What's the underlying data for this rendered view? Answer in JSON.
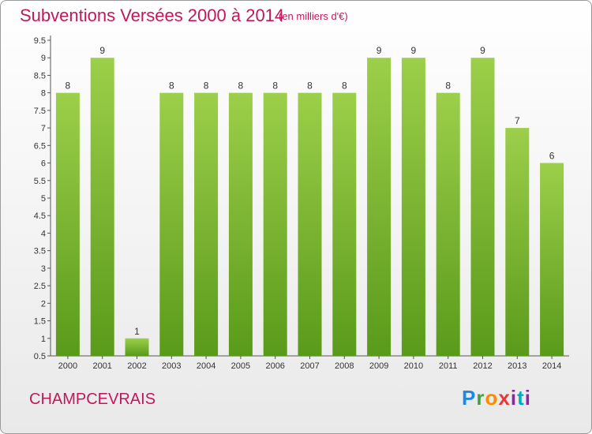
{
  "header": {
    "title": "Subventions Versées 2000 à 2014",
    "unit": "(en milliers d'€)"
  },
  "footer": {
    "commune": "CHAMPCEVRAIS",
    "logo_text": "Proxiti"
  },
  "colors": {
    "bar_top": "#9ccf4a",
    "bar_bottom": "#5a9a1a",
    "title": "#c2185b",
    "axis": "#555555"
  },
  "chart_data": {
    "type": "bar",
    "title": "Subventions Versées 2000 à 2014",
    "subtitle": "(en milliers d'€)",
    "categories": [
      "2000",
      "2001",
      "2002",
      "2003",
      "2004",
      "2005",
      "2006",
      "2007",
      "2008",
      "2009",
      "2010",
      "2011",
      "2012",
      "2013",
      "2014"
    ],
    "values": [
      8,
      9,
      1,
      8,
      8,
      8,
      8,
      8,
      8,
      9,
      9,
      8,
      9,
      7,
      6
    ],
    "ylim": [
      0.5,
      9.5
    ],
    "yticks": [
      0.5,
      1,
      1.5,
      2,
      2.5,
      3,
      3.5,
      4,
      4.5,
      5,
      5.5,
      6,
      6.5,
      7,
      7.5,
      8,
      8.5,
      9,
      9.5
    ],
    "ytick_labels": [
      "0.5",
      "1",
      "1.5",
      "2",
      "2.5",
      "3",
      "3.5",
      "4",
      "4.5",
      "5",
      "5.5",
      "6",
      "6.5",
      "7",
      "7.5",
      "8",
      "8.5",
      "9",
      "9.5"
    ],
    "grid": false,
    "xlabel": "",
    "ylabel": ""
  }
}
